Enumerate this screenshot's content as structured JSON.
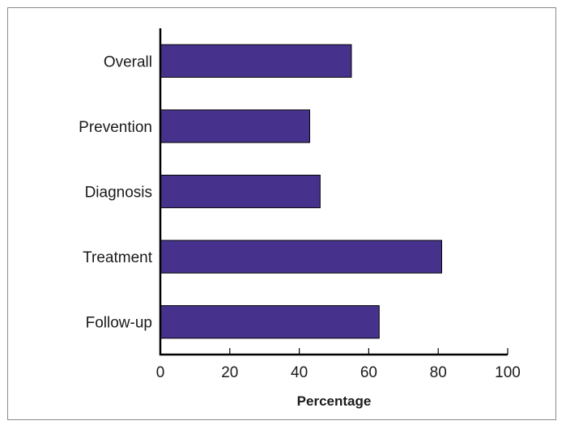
{
  "chart_data": {
    "type": "bar",
    "orientation": "horizontal",
    "categories": [
      "Overall",
      "Prevention",
      "Diagnosis",
      "Treatment",
      "Follow-up"
    ],
    "values": [
      55,
      43,
      46,
      81,
      63
    ],
    "xlabel": "Percentage",
    "ylabel": "",
    "xlim": [
      0,
      100
    ],
    "x_ticks": [
      "0",
      "20",
      "40",
      "60",
      "80",
      "100"
    ],
    "grid": false,
    "bar_color": "#46328c",
    "bar_edge_color": "#000000"
  }
}
